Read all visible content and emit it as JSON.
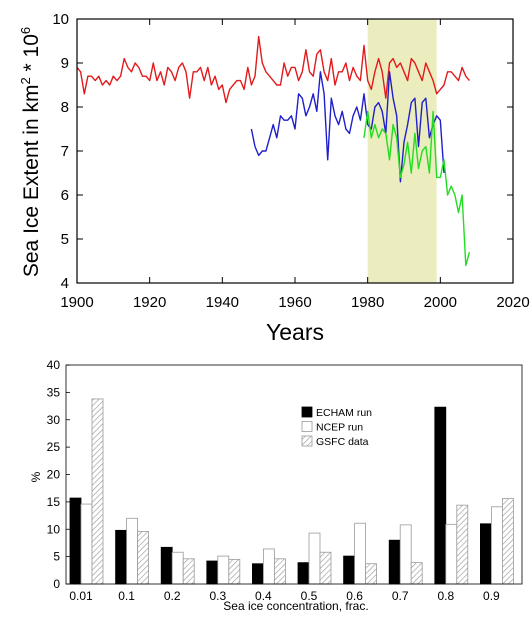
{
  "chart_data": [
    {
      "type": "line",
      "xlabel": "Years",
      "ylabel_parts": [
        "Sea Ice Extent in km",
        "2",
        " * 10",
        "6"
      ],
      "xlim": [
        1900,
        2020
      ],
      "ylim": [
        4,
        10
      ],
      "xticks": [
        "1900",
        "1920",
        "1940",
        "1960",
        "1980",
        "2000",
        "2020"
      ],
      "yticks": [
        "4",
        "5",
        "6",
        "7",
        "8",
        "9",
        "10"
      ],
      "highlight": {
        "range": [
          1980,
          1999
        ],
        "color": "#ecedbe"
      },
      "series": [
        {
          "color": "#e31a1c",
          "x": [
            1900,
            1901,
            1902,
            1903,
            1904,
            1905,
            1906,
            1907,
            1908,
            1909,
            1910,
            1911,
            1912,
            1913,
            1914,
            1915,
            1916,
            1917,
            1918,
            1919,
            1920,
            1921,
            1922,
            1923,
            1924,
            1925,
            1926,
            1927,
            1928,
            1929,
            1930,
            1931,
            1932,
            1933,
            1934,
            1935,
            1936,
            1937,
            1938,
            1939,
            1940,
            1941,
            1942,
            1943,
            1944,
            1945,
            1946,
            1947,
            1948,
            1949,
            1950,
            1951,
            1952,
            1953,
            1954,
            1955,
            1956,
            1957,
            1958,
            1959,
            1960,
            1961,
            1962,
            1963,
            1964,
            1965,
            1966,
            1967,
            1968,
            1969,
            1970,
            1971,
            1972,
            1973,
            1974,
            1975,
            1976,
            1977,
            1978,
            1979,
            1980,
            1981,
            1982,
            1983,
            1984,
            1985,
            1986,
            1987,
            1988,
            1989,
            1990,
            1991,
            1992,
            1993,
            1994,
            1995,
            1996,
            1997,
            1998,
            1999,
            2000,
            2001,
            2002,
            2003,
            2004,
            2005,
            2006,
            2007,
            2008
          ],
          "y": [
            8.9,
            8.8,
            8.3,
            8.7,
            8.7,
            8.6,
            8.7,
            8.5,
            8.6,
            8.5,
            8.7,
            8.6,
            8.7,
            9.1,
            8.9,
            8.8,
            9.0,
            8.9,
            8.7,
            8.7,
            8.6,
            9.0,
            8.6,
            8.8,
            8.5,
            8.9,
            8.8,
            8.6,
            8.9,
            9.0,
            8.8,
            8.2,
            8.8,
            8.8,
            8.9,
            8.6,
            8.9,
            8.5,
            8.7,
            8.4,
            8.5,
            8.1,
            8.4,
            8.5,
            8.6,
            8.6,
            8.4,
            8.9,
            8.5,
            8.7,
            9.6,
            9.0,
            8.8,
            8.7,
            8.6,
            8.5,
            8.5,
            9.0,
            8.7,
            8.9,
            8.9,
            8.6,
            8.8,
            9.3,
            8.8,
            8.7,
            9.2,
            9.3,
            8.8,
            8.6,
            9.1,
            8.5,
            8.8,
            8.8,
            9.0,
            8.6,
            8.9,
            8.7,
            8.6,
            9.4,
            8.6,
            8.4,
            8.8,
            9.1,
            8.8,
            8.2,
            9.0,
            9.1,
            8.9,
            9.0,
            8.8,
            8.6,
            9.1,
            9.0,
            8.8,
            8.6,
            9.0,
            8.8,
            8.6,
            8.3,
            8.4,
            8.5,
            8.8,
            8.8,
            8.7,
            8.6,
            8.9,
            8.7,
            8.6
          ]
        },
        {
          "color": "#1f1fcc",
          "x": [
            1948,
            1949,
            1950,
            1951,
            1952,
            1953,
            1954,
            1955,
            1956,
            1957,
            1958,
            1959,
            1960,
            1961,
            1962,
            1963,
            1964,
            1965,
            1966,
            1967,
            1968,
            1969,
            1970,
            1971,
            1972,
            1973,
            1974,
            1975,
            1976,
            1977,
            1978,
            1979,
            1980,
            1981,
            1982,
            1983,
            1984,
            1985,
            1986,
            1987,
            1988,
            1989,
            1990,
            1991,
            1992,
            1993,
            1994,
            1995,
            1996,
            1997,
            1998,
            1999,
            2000,
            2001
          ],
          "y": [
            7.5,
            7.1,
            6.9,
            7.0,
            7.0,
            7.3,
            7.6,
            7.3,
            7.8,
            7.7,
            7.7,
            7.8,
            7.5,
            8.3,
            8.2,
            7.8,
            8.0,
            8.3,
            7.9,
            8.8,
            8.3,
            6.8,
            8.2,
            7.8,
            7.6,
            7.9,
            7.5,
            7.4,
            7.8,
            8.0,
            7.7,
            8.3,
            7.6,
            7.5,
            8.0,
            8.1,
            7.9,
            7.4,
            8.8,
            8.2,
            7.8,
            6.3,
            7.2,
            7.6,
            8.1,
            8.2,
            7.1,
            8.1,
            8.2,
            7.3,
            7.6,
            7.8,
            7.7,
            6.5
          ]
        },
        {
          "color": "#22dd22",
          "x": [
            1979,
            1980,
            1981,
            1982,
            1983,
            1984,
            1985,
            1986,
            1987,
            1988,
            1989,
            1990,
            1991,
            1992,
            1993,
            1994,
            1995,
            1996,
            1997,
            1998,
            1999,
            2000,
            2001,
            2002,
            2003,
            2004,
            2005,
            2006,
            2007,
            2008
          ],
          "y": [
            7.3,
            7.9,
            7.3,
            7.6,
            7.3,
            7.5,
            7.4,
            6.8,
            7.6,
            7.3,
            6.4,
            6.7,
            7.2,
            6.5,
            7.4,
            6.6,
            7.0,
            7.1,
            6.5,
            7.9,
            6.4,
            6.4,
            6.8,
            6.0,
            6.2,
            6.0,
            5.6,
            6.0,
            4.4,
            4.7
          ]
        }
      ]
    },
    {
      "type": "bar",
      "xlabel": "Sea ice concentration, frac.",
      "ylabel": "%",
      "ylim": [
        0,
        40
      ],
      "yticks": [
        "0",
        "5",
        "10",
        "15",
        "20",
        "25",
        "30",
        "35",
        "40"
      ],
      "categories": [
        "0.01",
        "0.1",
        "0.2",
        "0.3",
        "0.4",
        "0.5",
        "0.6",
        "0.7",
        "0.8",
        "0.9"
      ],
      "legend_position": "upper-right",
      "series": [
        {
          "name": "ECHAM run",
          "style": "solid-black",
          "values": [
            15.7,
            9.8,
            6.7,
            4.2,
            3.7,
            3.9,
            5.1,
            8.0,
            32.3,
            11.0
          ]
        },
        {
          "name": "NCEP run",
          "style": "white",
          "values": [
            14.6,
            12.0,
            5.8,
            5.1,
            6.4,
            9.3,
            11.1,
            10.8,
            10.9,
            14.1
          ]
        },
        {
          "name": "GSFC data",
          "style": "hatched",
          "values": [
            33.8,
            9.6,
            4.6,
            4.5,
            4.6,
            5.8,
            3.7,
            3.9,
            14.4,
            15.6
          ]
        }
      ]
    }
  ]
}
